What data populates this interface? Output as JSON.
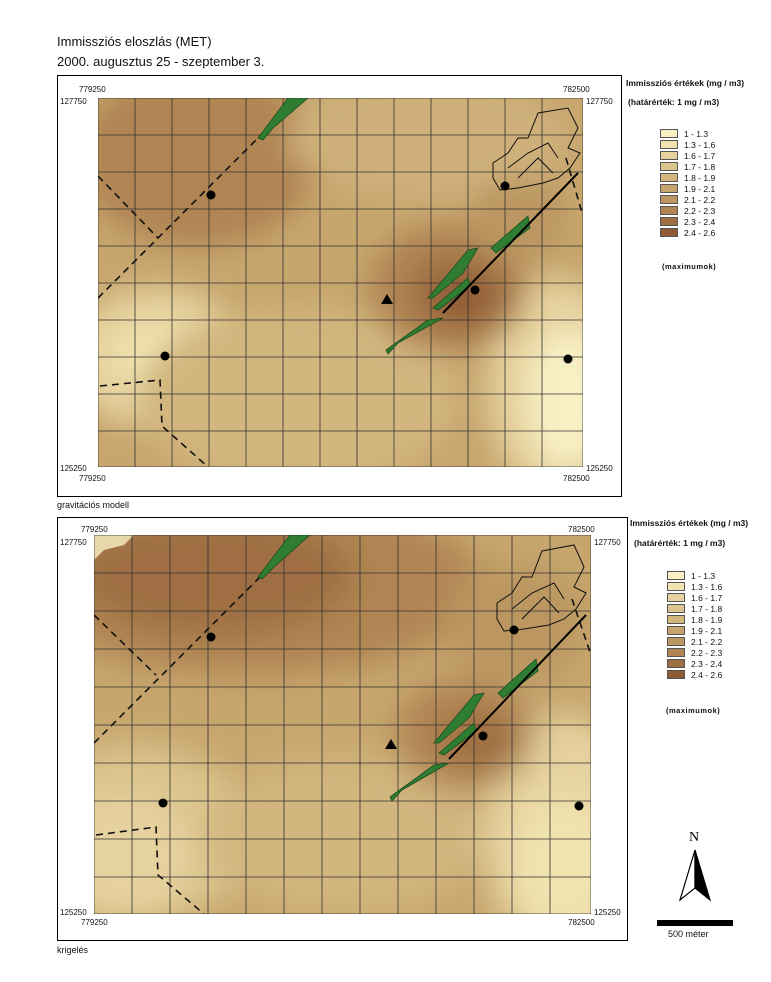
{
  "title_line1": "Immissziós eloszlás (MET)",
  "title_line2": "2000. augusztus 25 - szeptember 3.",
  "colors": {
    "c1": "#f8f0c4",
    "c2": "#f0e3b0",
    "c3": "#e6d29e",
    "c4": "#dcc58e",
    "c5": "#d2b67e",
    "c6": "#c7a66e",
    "c7": "#bb9660",
    "c8": "#b08553",
    "c9": "#9f6e42",
    "c10": "#8f5b34",
    "green": "#2e7d32"
  },
  "maps": [
    {
      "caption": "gravitációs modell",
      "coord_tl_x": "779250",
      "coord_tl_y": "127750",
      "coord_tr_x": "782500",
      "coord_tr_y": "127750",
      "coord_bl_y": "125250",
      "coord_bl_x": "779250",
      "coord_br_y": "125250",
      "coord_br_x": "782500"
    },
    {
      "caption": "krigelés",
      "coord_tl_x": "779250",
      "coord_tl_y": "127750",
      "coord_tr_x": "782500",
      "coord_tr_y": "127750",
      "coord_bl_y": "125250",
      "coord_bl_x": "779250",
      "coord_br_y": "125250",
      "coord_br_x": "782500"
    }
  ],
  "legend": {
    "title": "Immissziós értékek (mg / m3)",
    "subtitle": "(határérték: 1 mg / m3)",
    "classes": [
      "1 - 1.3",
      "1.3 - 1.6",
      "1.6 - 1.7",
      "1.7 - 1.8",
      "1.8 - 1.9",
      "1.9 - 2.1",
      "2.1 - 2.2",
      "2.2 - 2.3",
      "2.3 - 2.4",
      "2.4 - 2.6"
    ],
    "note": "(maximumok)"
  },
  "north_label": "N",
  "scale_label": "500 méter"
}
